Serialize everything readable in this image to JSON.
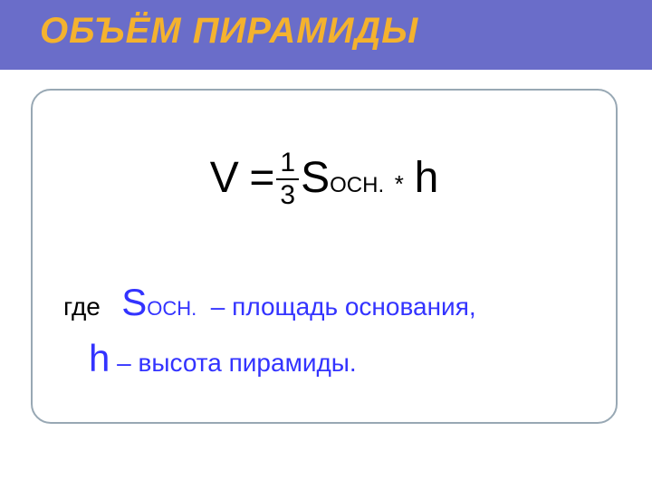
{
  "colors": {
    "band_bg": "#6a6dc9",
    "title": "#f4b22e",
    "body": "#000000",
    "accent": "#3333ff",
    "box_border": "#98a8b4"
  },
  "title": "ОБЪЁМ ПИРАМИДЫ",
  "formula": {
    "V": "V",
    "equals": "=",
    "frac_num": "1",
    "frac_den": "3",
    "S": "S",
    "S_sub": "ОСН.",
    "op": "*",
    "h": "h"
  },
  "desc": {
    "where": "где",
    "S": "S",
    "S_sub": "ОСН.",
    "dash1": "–",
    "S_text": "площадь основания,",
    "h": "h",
    "dash2": "–",
    "h_text": "высота пирамиды."
  }
}
